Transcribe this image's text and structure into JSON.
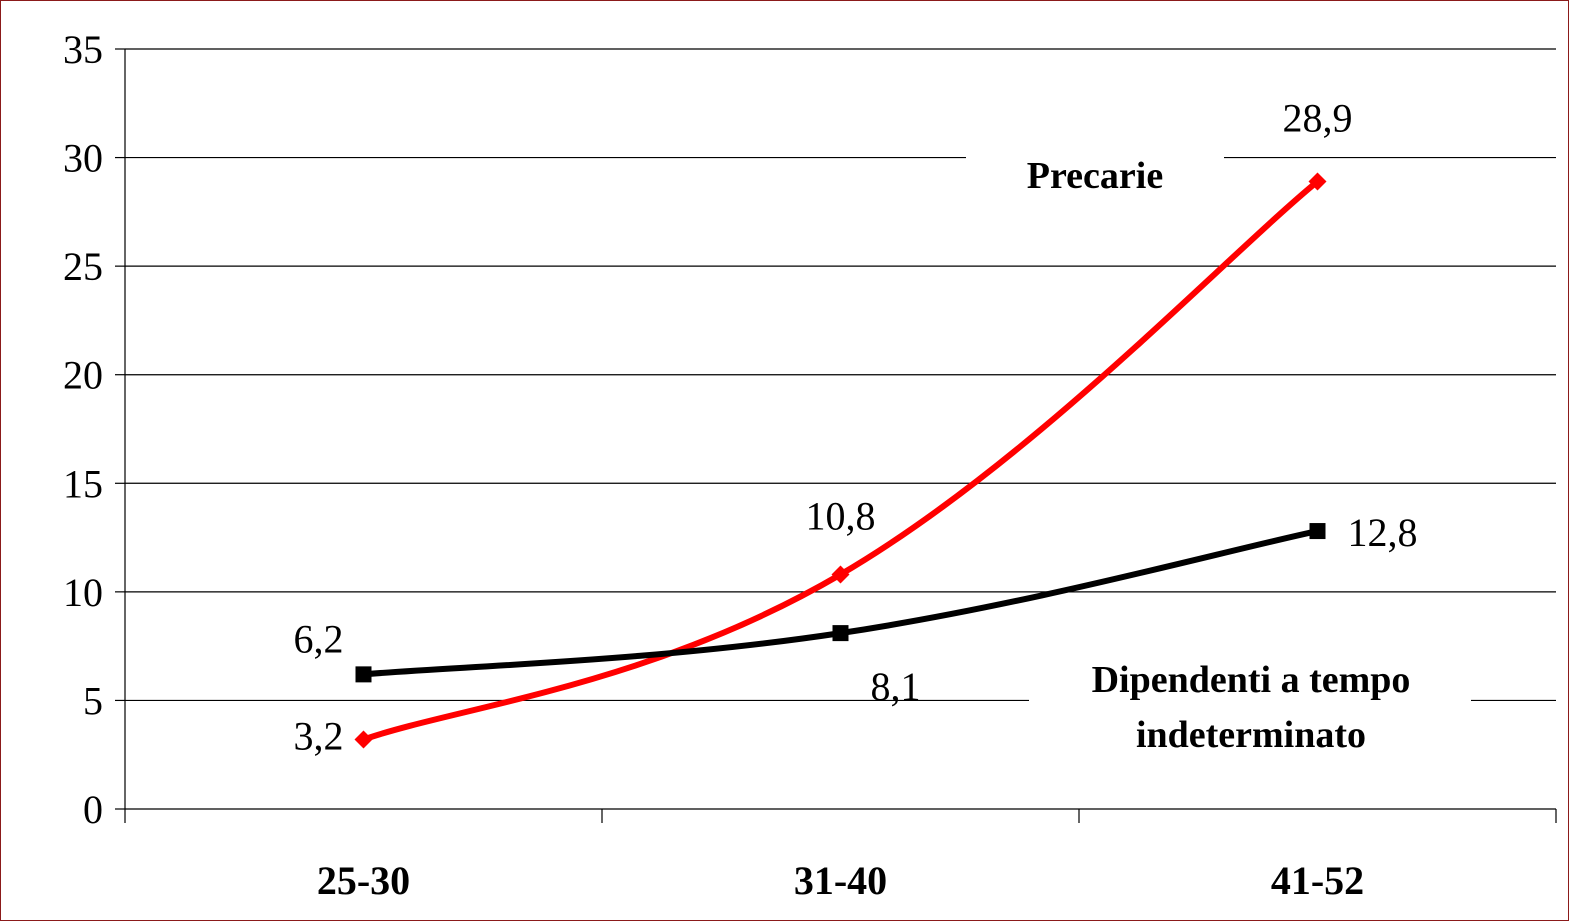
{
  "chart_data": {
    "type": "line",
    "categories": [
      "25-30",
      "31-40",
      "41-52"
    ],
    "ylim": [
      0,
      35
    ],
    "yticks": [
      "0",
      "5",
      "10",
      "15",
      "20",
      "25",
      "30",
      "35"
    ],
    "grid": true,
    "series": [
      {
        "name": "Precarie",
        "color": "#ff0000",
        "marker": "diamond",
        "values": [
          3.2,
          10.8,
          28.9
        ],
        "labels": [
          "3,2",
          "10,8",
          "28,9"
        ]
      },
      {
        "name": "Dipendenti a tempo indeterminato",
        "name_lines": [
          "Dipendenti a tempo",
          "indeterminato"
        ],
        "color": "#000000",
        "marker": "square",
        "values": [
          6.2,
          8.1,
          12.8
        ],
        "labels": [
          "6,2",
          "8,1",
          "12,8"
        ]
      }
    ]
  }
}
